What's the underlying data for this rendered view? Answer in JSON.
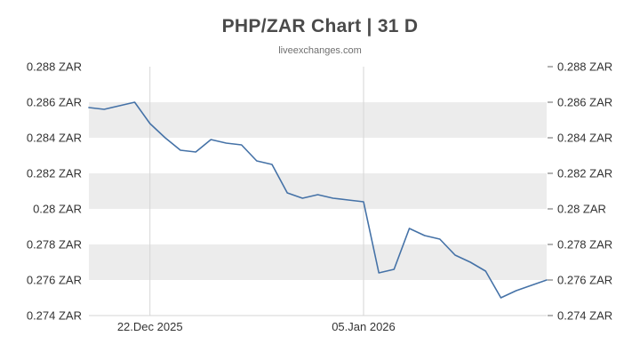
{
  "header": {
    "title": "PHP/ZAR Chart | 31 D",
    "subtitle": "liveexchanges.com"
  },
  "chart_data": {
    "type": "line",
    "title": "PHP/ZAR Chart | 31 D",
    "subtitle": "liveexchanges.com",
    "xlabel": "",
    "ylabel": "",
    "ylim": [
      0.274,
      0.288
    ],
    "ytick_step": 0.002,
    "yticks": [
      {
        "value": 0.288,
        "label": "0.288 ZAR"
      },
      {
        "value": 0.286,
        "label": "0.286 ZAR"
      },
      {
        "value": 0.284,
        "label": "0.284 ZAR"
      },
      {
        "value": 0.282,
        "label": "0.282 ZAR"
      },
      {
        "value": 0.28,
        "label": "0.28 ZAR"
      },
      {
        "value": 0.278,
        "label": "0.278 ZAR"
      },
      {
        "value": 0.276,
        "label": "0.276 ZAR"
      },
      {
        "value": 0.274,
        "label": "0.274 ZAR"
      }
    ],
    "xticks": [
      {
        "index": 4,
        "label": "22.Dec 2025"
      },
      {
        "index": 18,
        "label": "05.Jan 2026"
      }
    ],
    "series": [
      {
        "name": "PHP/ZAR",
        "values": [
          0.2857,
          0.2856,
          0.2858,
          0.286,
          0.2848,
          0.284,
          0.2833,
          0.2832,
          0.2839,
          0.2837,
          0.2836,
          0.2827,
          0.2825,
          0.2809,
          0.2806,
          0.2808,
          0.2806,
          0.2805,
          0.2804,
          0.2764,
          0.2766,
          0.2789,
          0.2785,
          0.2783,
          0.2774,
          0.277,
          0.2765,
          0.275,
          0.2754,
          0.2757,
          0.276
        ]
      }
    ],
    "legend": "none",
    "grid": "vertical-lines-at-x-ticks, alternating-horizontal-bands, y-labels-on-both-sides",
    "colors": {
      "line": "#4572a7",
      "band": "#ececec",
      "gridline": "#d6d6d6",
      "axis_line": "#d6d6d6",
      "tick_mark": "#666666",
      "tick_label": "#333333",
      "title": "#4a4a4a",
      "subtitle": "#6f6f6f"
    }
  }
}
